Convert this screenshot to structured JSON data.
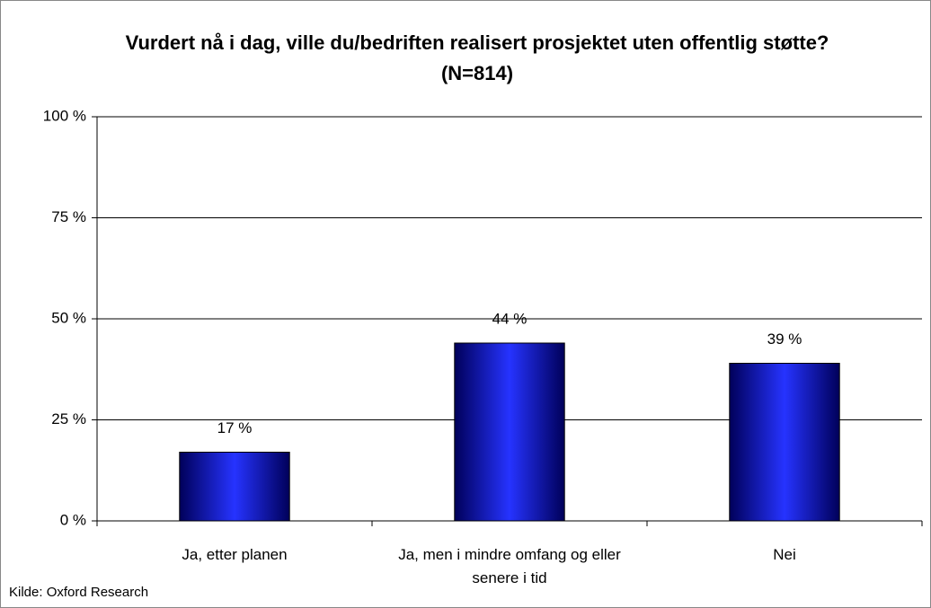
{
  "chart_data": {
    "type": "bar",
    "title": "Vurdert nå i dag, ville du/bedriften realisert prosjektet uten offentlig støtte? (N=814)",
    "categories": [
      "Ja, etter planen",
      "Ja, men i mindre omfang og eller senere i tid",
      "Nei"
    ],
    "values": [
      17,
      44,
      39
    ],
    "value_labels": [
      "17 %",
      "44 %",
      "39 %"
    ],
    "color": "#2633ff",
    "ylim": [
      0,
      100
    ],
    "yticks": [
      {
        "value": 0,
        "label": "0 %"
      },
      {
        "value": 25,
        "label": "25 %"
      },
      {
        "value": 50,
        "label": "50 %"
      },
      {
        "value": 75,
        "label": "75 %"
      },
      {
        "value": 100,
        "label": "100 %"
      }
    ],
    "grid": true,
    "source": "Kilde: Oxford Research"
  }
}
